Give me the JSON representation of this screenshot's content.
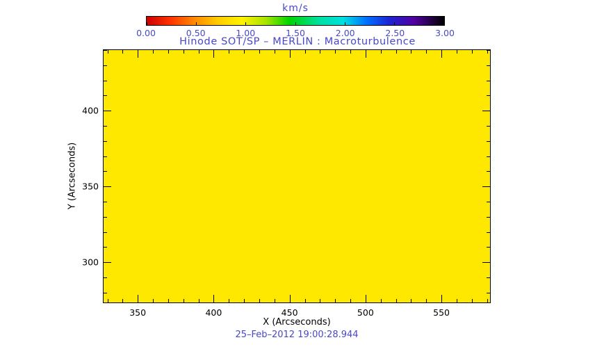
{
  "chart_data": {
    "type": "heatmap",
    "title": "Hinode SOT/SP – MERLIN : Macroturbulence",
    "xlabel": "X (Arcseconds)",
    "ylabel": "Y (Arcseconds)",
    "timestamp": "25–Feb–2012 19:00:28.944",
    "xlim": [
      327.5,
      582
    ],
    "ylim": [
      273.5,
      440
    ],
    "x_major_ticks": [
      350,
      400,
      450,
      500,
      550
    ],
    "y_major_ticks": [
      300,
      350,
      400
    ],
    "x_minor_step": 10,
    "y_minor_step": 10,
    "grid": false,
    "field": "uniform",
    "approx_uniform_value_km_s": 0.9,
    "fill_color": "#ffe800",
    "colorbar": {
      "label": "km/s",
      "min": 0.0,
      "max": 3.0,
      "ticks": [
        "0.00",
        "0.50",
        "1.00",
        "1.50",
        "2.00",
        "2.50",
        "3.00"
      ],
      "gradient": [
        "#cc0000 0%",
        "#ff3300 8%",
        "#ff8800 16%",
        "#ffcc00 24%",
        "#fff200 32%",
        "#a8e400 40%",
        "#00d400 48%",
        "#00e0a0 58%",
        "#00e0e0 66%",
        "#0070ff 74%",
        "#2020d0 82%",
        "#5000a0 90%",
        "#000000 100%"
      ],
      "position": "top-horizontal"
    }
  },
  "colors": {
    "annotation_blue": "#4747c9",
    "axis_black": "#000000"
  }
}
